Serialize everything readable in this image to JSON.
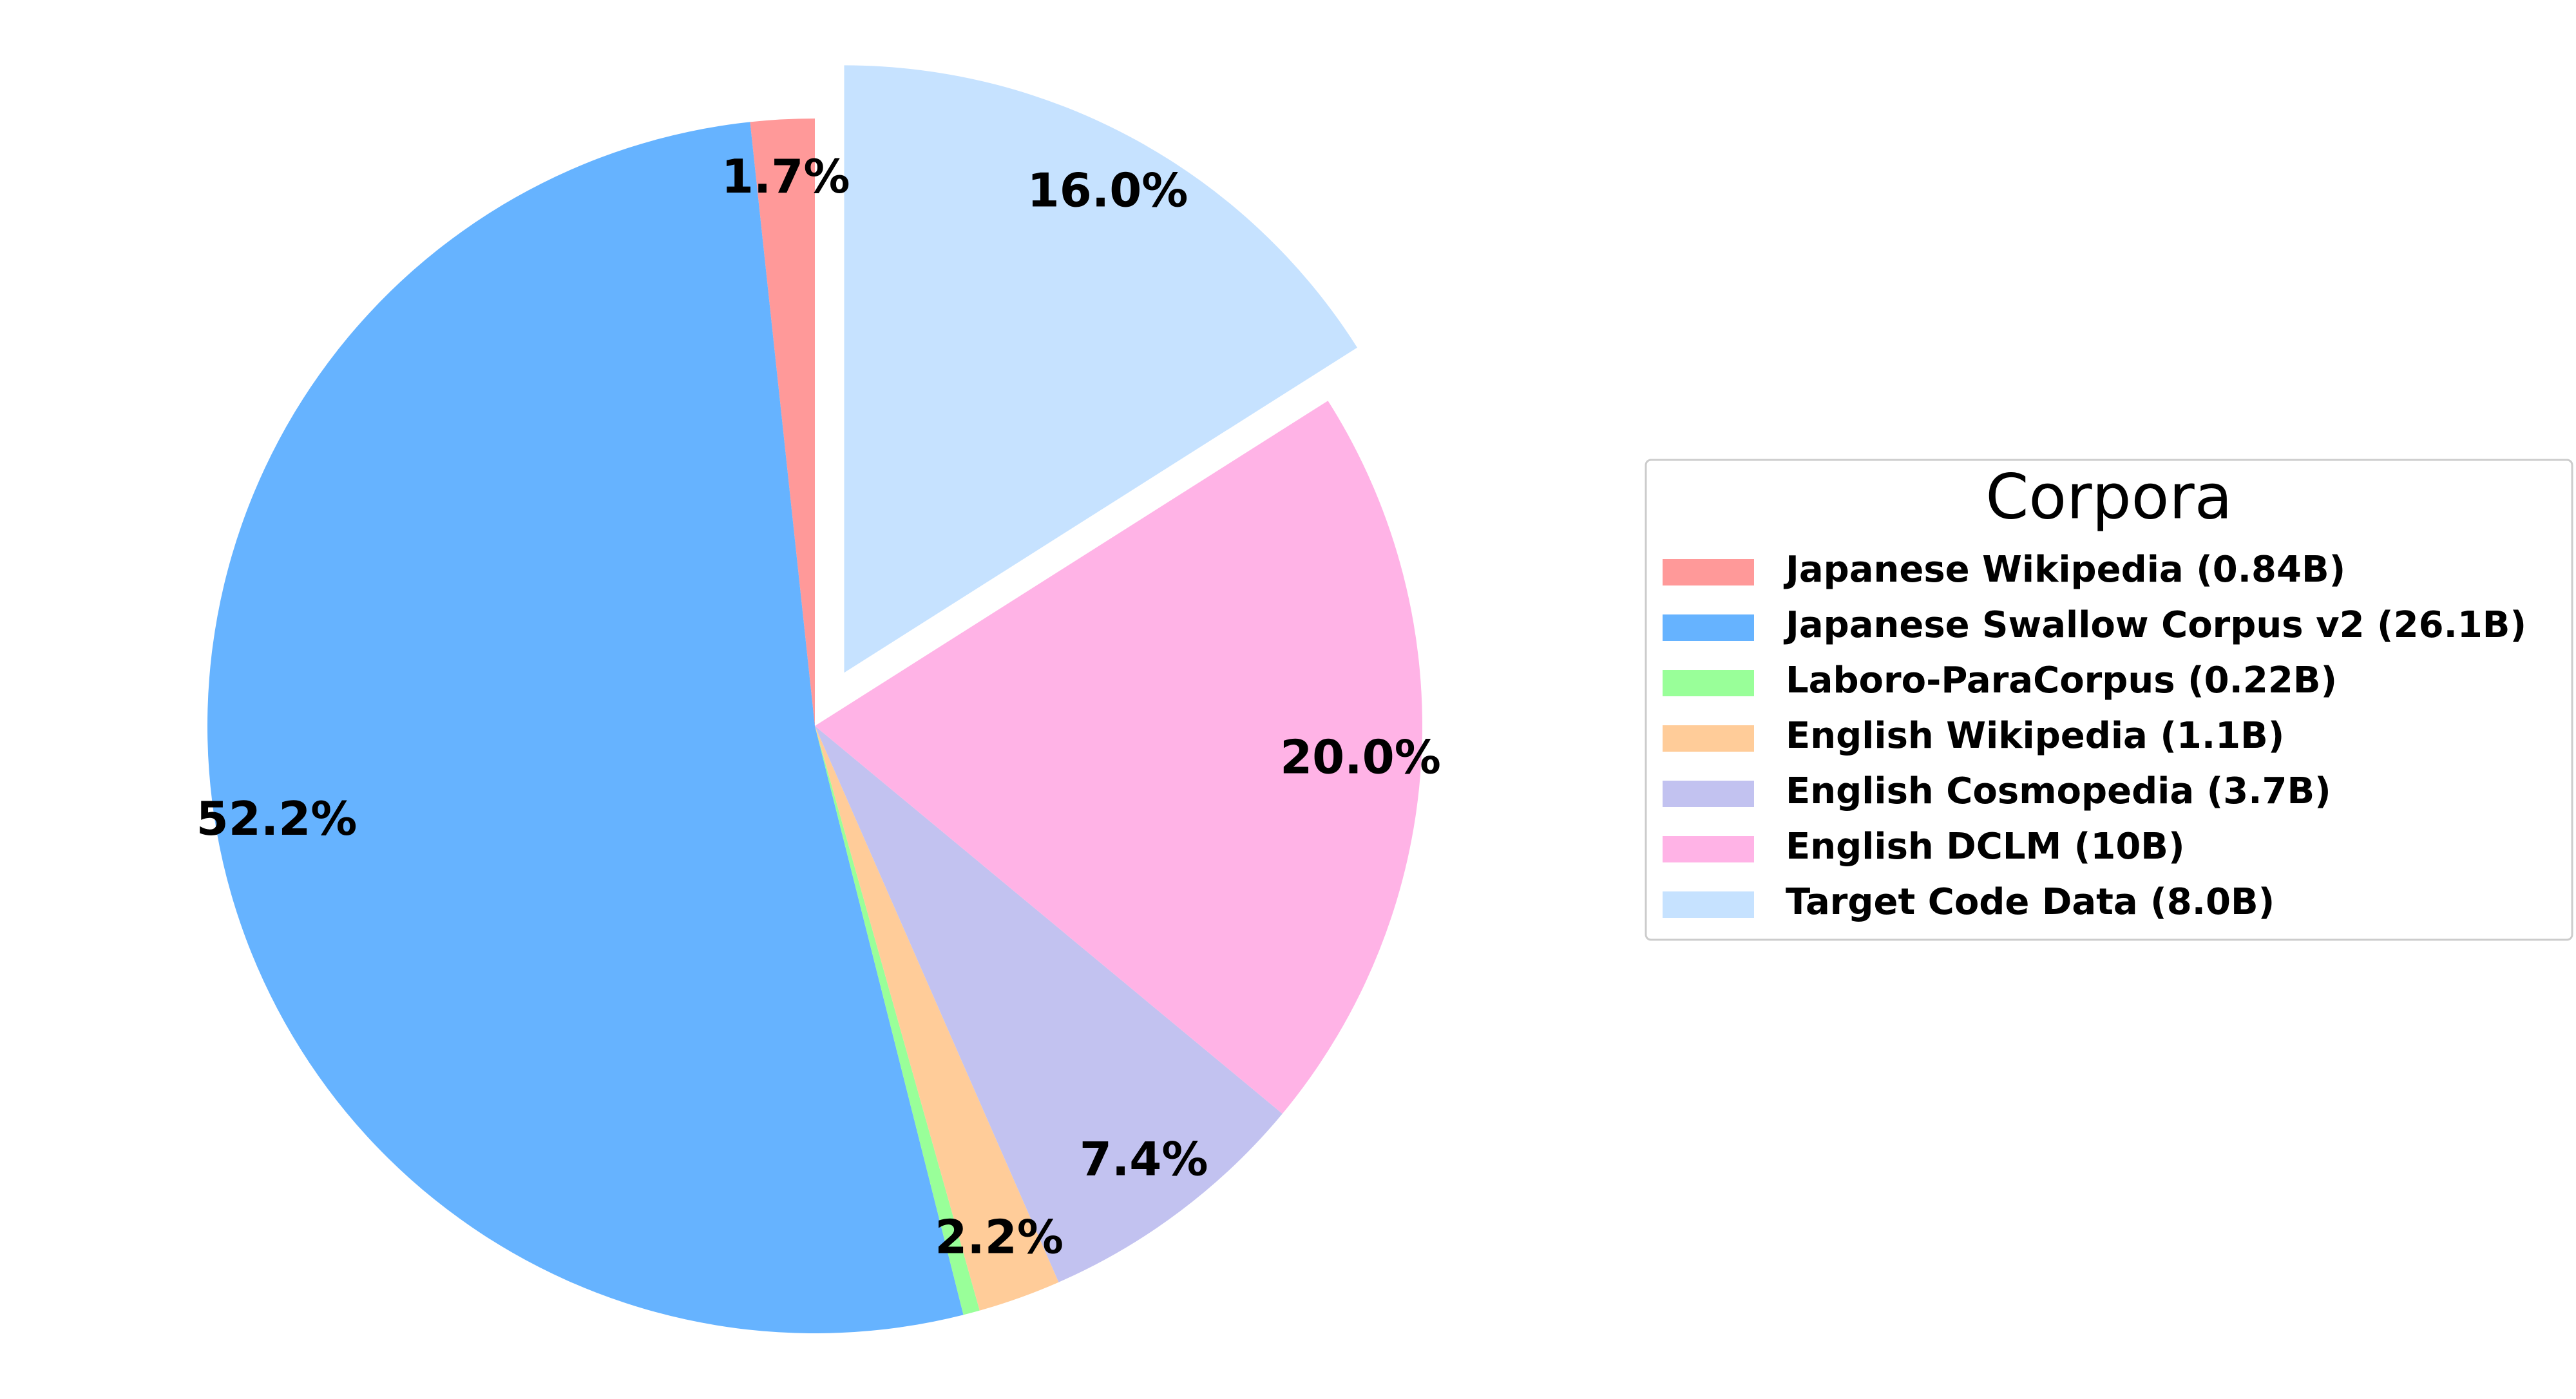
{
  "chart_data": {
    "type": "pie",
    "legend_title": "Corpora",
    "categories": [
      "Japanese Wikipedia (0.84B)",
      "Japanese Swallow Corpus v2 (26.1B)",
      "Laboro-ParaCorpus (0.22B)",
      "English Wikipedia (1.1B)",
      "English Cosmopedia (3.7B)",
      "English DCLM (10B)",
      "Target Code Data (8.0B)"
    ],
    "values": [
      1.7,
      52.2,
      0.44,
      2.2,
      7.4,
      20.0,
      16.0
    ],
    "value_labels": [
      "1.7%",
      "52.2%",
      null,
      "2.2%",
      "7.4%",
      "20.0%",
      "16.0%"
    ],
    "colors": [
      "#ff9999",
      "#66b3ff",
      "#99ff99",
      "#ffcc99",
      "#c2c2f0",
      "#ffb3e6",
      "#c6e2ff"
    ],
    "explode": [
      0,
      0,
      0,
      0,
      0,
      0,
      0.1
    ],
    "start_angle": 90,
    "legend": "right"
  }
}
